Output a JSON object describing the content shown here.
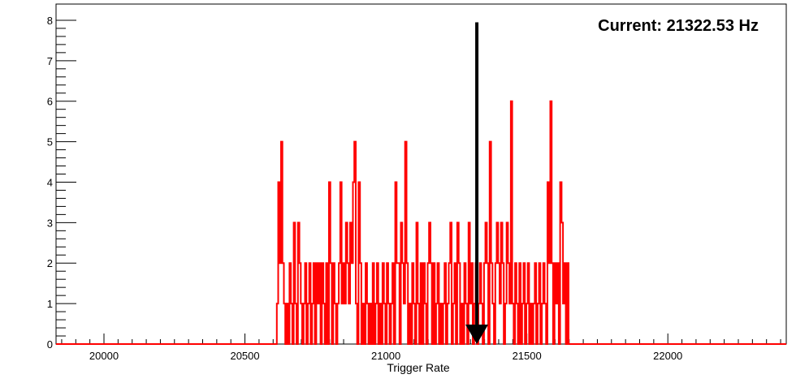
{
  "chart_data": {
    "type": "step",
    "title": "",
    "xlabel": "Trigger Rate",
    "ylabel": "",
    "xlim": [
      19830,
      22420
    ],
    "ylim": [
      0,
      8.4
    ],
    "x_ticks": [
      20000,
      20500,
      21000,
      21500,
      22000
    ],
    "y_ticks": [
      0,
      1,
      2,
      3,
      4,
      5,
      6,
      7,
      8
    ],
    "grid": false,
    "bin_width": 5,
    "series": [
      {
        "color": "#ff0000",
        "points": [
          [
            19830,
            0
          ],
          [
            20610,
            0
          ],
          [
            20613,
            1
          ],
          [
            20618,
            4
          ],
          [
            20623,
            2
          ],
          [
            20628,
            5
          ],
          [
            20633,
            2
          ],
          [
            20638,
            1
          ],
          [
            20643,
            0
          ],
          [
            20648,
            1
          ],
          [
            20653,
            0
          ],
          [
            20658,
            2
          ],
          [
            20663,
            1
          ],
          [
            20668,
            0
          ],
          [
            20673,
            3
          ],
          [
            20678,
            1
          ],
          [
            20683,
            0
          ],
          [
            20688,
            3
          ],
          [
            20693,
            2
          ],
          [
            20698,
            1
          ],
          [
            20703,
            0
          ],
          [
            20708,
            1
          ],
          [
            20713,
            2
          ],
          [
            20718,
            0
          ],
          [
            20723,
            1
          ],
          [
            20728,
            2
          ],
          [
            20733,
            0
          ],
          [
            20738,
            1
          ],
          [
            20743,
            2
          ],
          [
            20748,
            0
          ],
          [
            20753,
            2
          ],
          [
            20758,
            1
          ],
          [
            20763,
            2
          ],
          [
            20768,
            0
          ],
          [
            20773,
            2
          ],
          [
            20778,
            1
          ],
          [
            20783,
            0
          ],
          [
            20788,
            2
          ],
          [
            20793,
            0
          ],
          [
            20798,
            4
          ],
          [
            20803,
            2
          ],
          [
            20808,
            0
          ],
          [
            20813,
            2
          ],
          [
            20818,
            1
          ],
          [
            20823,
            0
          ],
          [
            20828,
            1
          ],
          [
            20833,
            2
          ],
          [
            20838,
            4
          ],
          [
            20843,
            1
          ],
          [
            20848,
            2
          ],
          [
            20853,
            1
          ],
          [
            20858,
            3
          ],
          [
            20863,
            2
          ],
          [
            20868,
            1
          ],
          [
            20873,
            3
          ],
          [
            20878,
            2
          ],
          [
            20883,
            4
          ],
          [
            20888,
            5
          ],
          [
            20893,
            1
          ],
          [
            20898,
            0
          ],
          [
            20903,
            4
          ],
          [
            20908,
            2
          ],
          [
            20913,
            0
          ],
          [
            20918,
            1
          ],
          [
            20923,
            0
          ],
          [
            20928,
            2
          ],
          [
            20933,
            1
          ],
          [
            20938,
            0
          ],
          [
            20943,
            1
          ],
          [
            20948,
            0
          ],
          [
            20953,
            2
          ],
          [
            20958,
            0
          ],
          [
            20963,
            1
          ],
          [
            20968,
            2
          ],
          [
            20973,
            0
          ],
          [
            20978,
            1
          ],
          [
            20983,
            0
          ],
          [
            20988,
            2
          ],
          [
            20993,
            1
          ],
          [
            20998,
            0
          ],
          [
            21003,
            2
          ],
          [
            21008,
            1
          ],
          [
            21013,
            0
          ],
          [
            21018,
            1
          ],
          [
            21023,
            2
          ],
          [
            21028,
            0
          ],
          [
            21033,
            4
          ],
          [
            21038,
            2
          ],
          [
            21043,
            2
          ],
          [
            21048,
            0
          ],
          [
            21053,
            3
          ],
          [
            21058,
            2
          ],
          [
            21063,
            1
          ],
          [
            21068,
            5
          ],
          [
            21073,
            2
          ],
          [
            21078,
            0
          ],
          [
            21083,
            1
          ],
          [
            21088,
            0
          ],
          [
            21093,
            2
          ],
          [
            21098,
            1
          ],
          [
            21103,
            0
          ],
          [
            21108,
            3
          ],
          [
            21113,
            1
          ],
          [
            21118,
            0
          ],
          [
            21123,
            2
          ],
          [
            21128,
            0
          ],
          [
            21133,
            2
          ],
          [
            21138,
            1
          ],
          [
            21143,
            0
          ],
          [
            21148,
            2
          ],
          [
            21153,
            3
          ],
          [
            21158,
            2
          ],
          [
            21163,
            0
          ],
          [
            21168,
            2
          ],
          [
            21173,
            0
          ],
          [
            21178,
            1
          ],
          [
            21183,
            2
          ],
          [
            21188,
            0
          ],
          [
            21193,
            1
          ],
          [
            21198,
            0
          ],
          [
            21203,
            1
          ],
          [
            21208,
            2
          ],
          [
            21213,
            0
          ],
          [
            21218,
            1
          ],
          [
            21223,
            2
          ],
          [
            21228,
            3
          ],
          [
            21233,
            0
          ],
          [
            21238,
            1
          ],
          [
            21243,
            2
          ],
          [
            21248,
            0
          ],
          [
            21253,
            3
          ],
          [
            21258,
            2
          ],
          [
            21263,
            0
          ],
          [
            21268,
            1
          ],
          [
            21273,
            0
          ],
          [
            21278,
            2
          ],
          [
            21283,
            1
          ],
          [
            21288,
            0
          ],
          [
            21293,
            3
          ],
          [
            21298,
            1
          ],
          [
            21303,
            2
          ],
          [
            21308,
            0
          ],
          [
            21313,
            1
          ],
          [
            21318,
            2
          ],
          [
            21323,
            0
          ],
          [
            21328,
            1
          ],
          [
            21333,
            2
          ],
          [
            21338,
            1
          ],
          [
            21343,
            0
          ],
          [
            21348,
            2
          ],
          [
            21353,
            3
          ],
          [
            21358,
            2
          ],
          [
            21363,
            0
          ],
          [
            21368,
            5
          ],
          [
            21373,
            2
          ],
          [
            21378,
            1
          ],
          [
            21383,
            0
          ],
          [
            21388,
            2
          ],
          [
            21393,
            3
          ],
          [
            21398,
            2
          ],
          [
            21403,
            1
          ],
          [
            21408,
            3
          ],
          [
            21413,
            2
          ],
          [
            21418,
            0
          ],
          [
            21423,
            1
          ],
          [
            21428,
            3
          ],
          [
            21433,
            2
          ],
          [
            21438,
            1
          ],
          [
            21443,
            6
          ],
          [
            21448,
            1
          ],
          [
            21453,
            0
          ],
          [
            21458,
            2
          ],
          [
            21463,
            1
          ],
          [
            21468,
            0
          ],
          [
            21473,
            2
          ],
          [
            21478,
            0
          ],
          [
            21483,
            1
          ],
          [
            21488,
            2
          ],
          [
            21493,
            0
          ],
          [
            21498,
            1
          ],
          [
            21503,
            2
          ],
          [
            21508,
            0
          ],
          [
            21513,
            1
          ],
          [
            21518,
            0
          ],
          [
            21523,
            1
          ],
          [
            21528,
            2
          ],
          [
            21533,
            0
          ],
          [
            21538,
            1
          ],
          [
            21543,
            2
          ],
          [
            21548,
            0
          ],
          [
            21553,
            1
          ],
          [
            21558,
            2
          ],
          [
            21563,
            1
          ],
          [
            21568,
            0
          ],
          [
            21573,
            4
          ],
          [
            21578,
            2
          ],
          [
            21583,
            6
          ],
          [
            21588,
            2
          ],
          [
            21593,
            0
          ],
          [
            21598,
            2
          ],
          [
            21603,
            1
          ],
          [
            21608,
            2
          ],
          [
            21613,
            0
          ],
          [
            21618,
            4
          ],
          [
            21623,
            3
          ],
          [
            21628,
            1
          ],
          [
            21633,
            2
          ],
          [
            21638,
            0
          ],
          [
            21643,
            2
          ],
          [
            21648,
            0
          ],
          [
            21653,
            0
          ],
          [
            22420,
            0
          ]
        ]
      }
    ],
    "annotation": {
      "text": "Current: 21322.53 Hz",
      "arrow_x": 21322.53,
      "arrow_y_from": 7.95,
      "arrow_y_to": 0
    }
  }
}
